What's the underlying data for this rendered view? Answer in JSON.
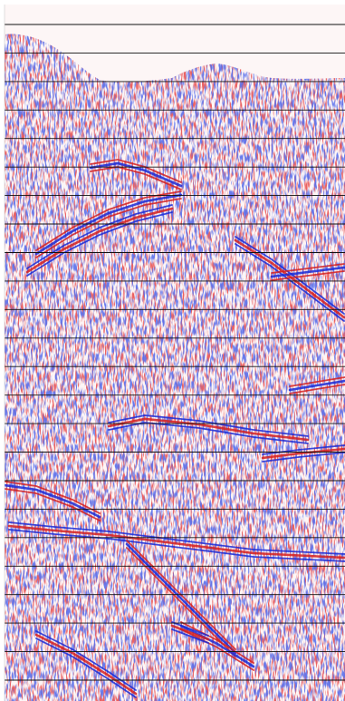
{
  "image": {
    "kind": "seismic-section",
    "colormap": {
      "positive": "#d42020",
      "negative": "#1a2ad6",
      "neutral": "#ffffff",
      "background": "#fdf6f6",
      "gridline": "#111111"
    },
    "gridlines_count": 24,
    "visible_text": []
  }
}
